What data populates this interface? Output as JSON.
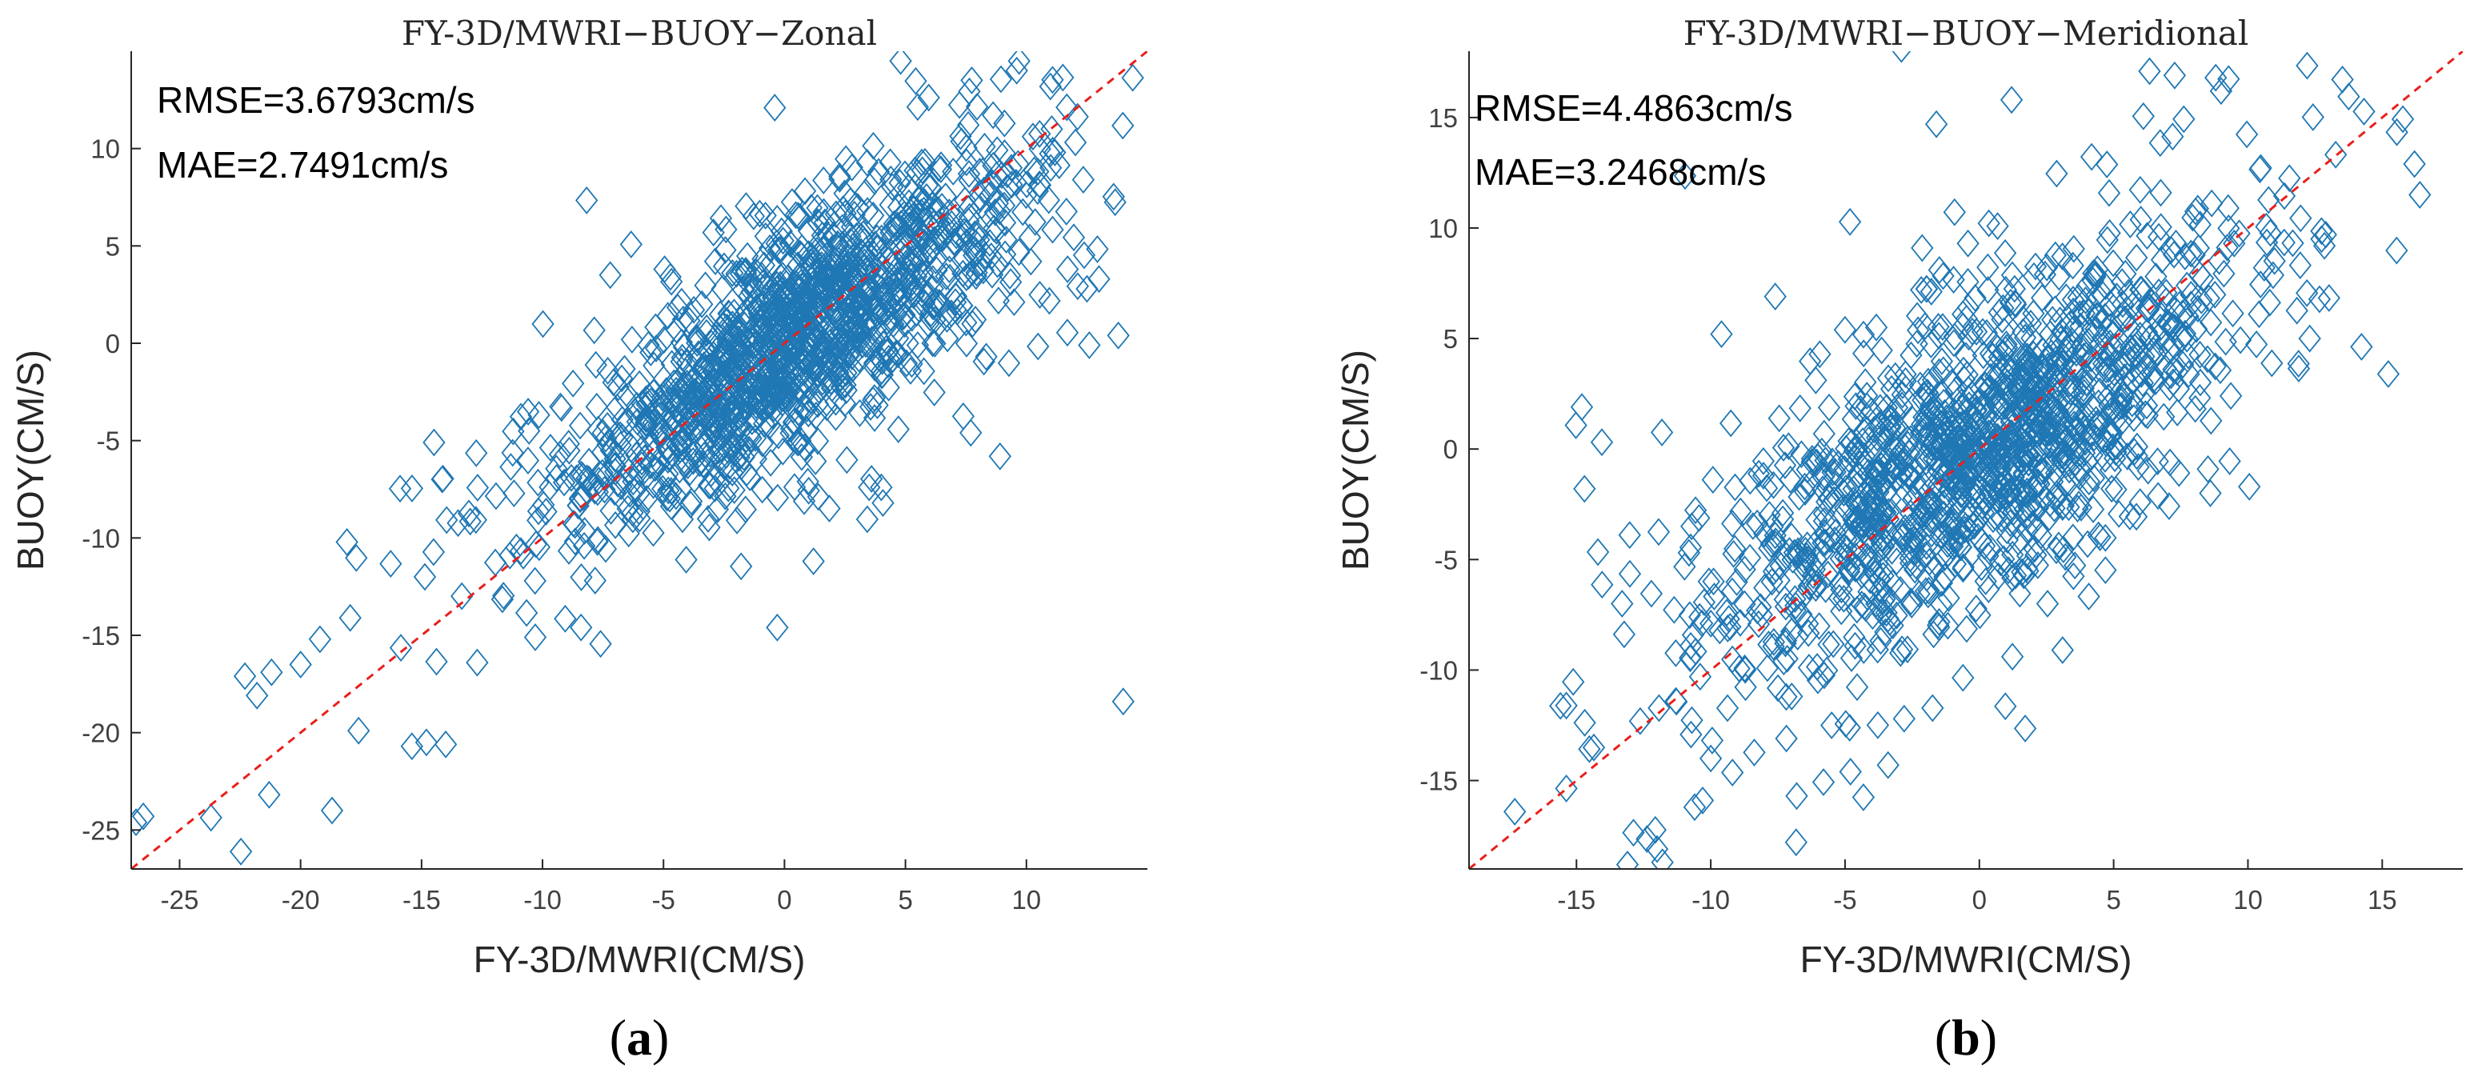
{
  "colors": {
    "marker": "#1f77b4",
    "reference_line": "#e8201c",
    "axis": "#262626"
  },
  "chart_data": [
    {
      "type": "scatter",
      "panel_label": "a",
      "title": "FY-3D/MWRI−BUOY−Zonal",
      "xlabel": "FY-3D/MWRI(CM/S)",
      "ylabel": "BUOY(CM/S)",
      "xlim": [
        -27,
        15
      ],
      "ylim": [
        -27,
        15
      ],
      "xticks": [
        -25,
        -20,
        -15,
        -10,
        -5,
        0,
        5,
        10
      ],
      "yticks": [
        -25,
        -20,
        -15,
        -10,
        -5,
        0,
        5,
        10
      ],
      "xtick_labels": [
        "-25",
        "-20",
        "-15",
        "-10",
        "-5",
        "0",
        "5",
        "10"
      ],
      "ytick_labels": [
        "-25",
        "-20",
        "-15",
        "-10",
        "-5",
        "0",
        "5",
        "10"
      ],
      "marker": "diamond-open",
      "reference_line": "y = x",
      "stats": [
        "RMSE=3.6793cm/s",
        "MAE=2.7491cm/s"
      ],
      "n_points": 1500,
      "estimated_linear_fit": {
        "slope": 0.78,
        "intercept": 0.4
      },
      "estimated_center": [
        0.5,
        0.5
      ],
      "estimated_spread_std": [
        4.5,
        3.7
      ],
      "notable_points": [
        [
          -26.8,
          -24.6
        ],
        [
          -26.5,
          -24.3
        ],
        [
          -22.3,
          -17.1
        ],
        [
          -21.2,
          -16.9
        ],
        [
          -20.0,
          -16.5
        ],
        [
          -19.2,
          -15.2
        ],
        [
          -18.7,
          -24.0
        ],
        [
          -17.6,
          -19.9
        ],
        [
          -15.4,
          -20.7
        ],
        [
          -14.8,
          -20.5
        ],
        [
          -14.0,
          -20.6
        ],
        [
          9.7,
          14.5
        ],
        [
          9.6,
          14.0
        ],
        [
          -0.4,
          12.1
        ],
        [
          4.8,
          14.5
        ],
        [
          12.6,
          -0.1
        ],
        [
          13.8,
          0.4
        ],
        [
          13.0,
          3.3
        ],
        [
          11.7,
          3.8
        ],
        [
          14.0,
          -18.4
        ],
        [
          -0.3,
          -14.6
        ],
        [
          1.2,
          -11.2
        ],
        [
          3.5,
          -7.4
        ],
        [
          4.0,
          -7.4
        ],
        [
          -7.2,
          3.5
        ],
        [
          -10.3,
          -15.1
        ],
        [
          -12.7,
          -16.4
        ]
      ]
    },
    {
      "type": "scatter",
      "panel_label": "b",
      "title": "FY-3D/MWRI−BUOY−Meridional",
      "xlabel": "FY-3D/MWRI(CM/S)",
      "ylabel": "BUOY(CM/S)",
      "xlim": [
        -19,
        18
      ],
      "ylim": [
        -19,
        18
      ],
      "xticks": [
        -15,
        -10,
        -5,
        0,
        5,
        10,
        15
      ],
      "yticks": [
        -15,
        -10,
        -5,
        0,
        5,
        10,
        15
      ],
      "xtick_labels": [
        "-15",
        "-10",
        "-5",
        "0",
        "5",
        "10",
        "15"
      ],
      "ytick_labels": [
        "-15",
        "-10",
        "-5",
        "0",
        "5",
        "10",
        "15"
      ],
      "marker": "diamond-open",
      "reference_line": "y = x",
      "stats": [
        "RMSE=4.4863cm/s",
        "MAE=3.2468cm/s"
      ],
      "n_points": 1500,
      "estimated_linear_fit": {
        "slope": 0.72,
        "intercept": 0.0
      },
      "estimated_center": [
        0.0,
        0.0
      ],
      "estimated_spread_std": [
        4.6,
        4.4
      ],
      "notable_points": [
        [
          -14.8,
          1.9
        ],
        [
          -14.7,
          -1.8
        ],
        [
          -13.3,
          -7.0
        ],
        [
          -13.1,
          -18.8
        ],
        [
          -11.8,
          -18.7
        ],
        [
          -12.0,
          -18.1
        ],
        [
          -10.6,
          -16.2
        ],
        [
          -10.3,
          -15.9
        ],
        [
          -2.9,
          18.1
        ],
        [
          8.8,
          16.8
        ],
        [
          9.0,
          16.2
        ],
        [
          16.4,
          11.5
        ],
        [
          12.9,
          9.7
        ],
        [
          12.3,
          5.0
        ],
        [
          -7.6,
          6.9
        ],
        [
          -9.6,
          5.2
        ],
        [
          -1.6,
          14.7
        ],
        [
          1.2,
          15.8
        ],
        [
          -3.4,
          -14.3
        ],
        [
          -4.8,
          -14.6
        ],
        [
          -2.8,
          -12.2
        ],
        [
          3.1,
          -9.1
        ],
        [
          8.6,
          -2.0
        ],
        [
          -11.3,
          -11.4
        ],
        [
          -6.8,
          -15.7
        ],
        [
          -5.5,
          -12.5
        ],
        [
          -10.0,
          -14.0
        ]
      ]
    }
  ]
}
